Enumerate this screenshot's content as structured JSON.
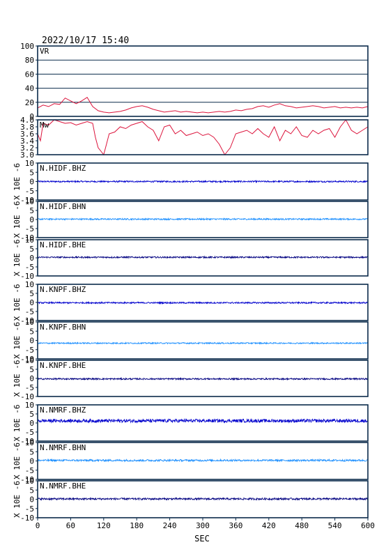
{
  "header": {
    "timestamp": "2022/10/17  15:40"
  },
  "chart_data": {
    "type": "line",
    "xlabel": "SEC",
    "xlim": [
      0,
      600
    ],
    "xticks": [
      0,
      60,
      120,
      180,
      240,
      300,
      360,
      420,
      480,
      540,
      600
    ],
    "colors": {
      "red": "#dc143c",
      "blue": "#0000cd",
      "lightblue": "#1e90ff",
      "navy": "#000080",
      "axis": "#0a2a4a"
    },
    "panels": [
      {
        "key": "vr",
        "label": "VR",
        "ylabel": "",
        "ylim": [
          0,
          100
        ],
        "yticks": [
          0,
          20,
          40,
          60,
          80,
          100
        ],
        "color": "red",
        "grid": true,
        "x": [
          0,
          10,
          20,
          30,
          40,
          50,
          60,
          70,
          80,
          90,
          100,
          110,
          120,
          130,
          140,
          150,
          160,
          170,
          180,
          190,
          200,
          210,
          220,
          230,
          240,
          250,
          260,
          270,
          280,
          290,
          300,
          310,
          320,
          330,
          340,
          350,
          360,
          370,
          380,
          390,
          400,
          410,
          420,
          430,
          440,
          450,
          460,
          470,
          480,
          490,
          500,
          510,
          520,
          530,
          540,
          550,
          560,
          570,
          580,
          590,
          600
        ],
        "values": [
          12,
          16,
          14,
          18,
          17,
          26,
          22,
          18,
          22,
          27,
          14,
          8,
          6,
          5,
          6,
          7,
          9,
          12,
          14,
          15,
          13,
          10,
          8,
          6,
          7,
          8,
          6,
          7,
          6,
          5,
          6,
          5,
          6,
          7,
          6,
          7,
          9,
          8,
          10,
          11,
          14,
          15,
          13,
          16,
          18,
          15,
          14,
          12,
          13,
          14,
          15,
          14,
          12,
          13,
          14,
          12,
          13,
          12,
          13,
          12,
          14
        ]
      },
      {
        "key": "mw",
        "label": "Mw",
        "ylabel": "",
        "ylim": [
          3.0,
          4.0
        ],
        "yticks": [
          3.0,
          3.2,
          3.4,
          3.6,
          3.8,
          4.0
        ],
        "ytick_labels": [
          "3.0",
          "3.2",
          "3.4",
          "3.6",
          "3.8",
          "4.0"
        ],
        "color": "red",
        "grid": false,
        "x": [
          0,
          5,
          10,
          20,
          30,
          40,
          50,
          60,
          70,
          80,
          90,
          100,
          105,
          110,
          115,
          120,
          125,
          130,
          140,
          150,
          160,
          170,
          180,
          190,
          200,
          210,
          220,
          230,
          240,
          250,
          260,
          270,
          280,
          290,
          300,
          310,
          320,
          330,
          340,
          350,
          360,
          370,
          380,
          390,
          400,
          410,
          420,
          430,
          440,
          450,
          460,
          470,
          480,
          490,
          500,
          510,
          520,
          530,
          540,
          550,
          560,
          570,
          580,
          590,
          600
        ],
        "values": [
          3.6,
          3.4,
          3.9,
          3.85,
          4.0,
          3.95,
          3.9,
          3.92,
          3.85,
          3.9,
          3.95,
          3.9,
          3.5,
          3.2,
          3.1,
          3.0,
          3.3,
          3.6,
          3.65,
          3.8,
          3.75,
          3.85,
          3.9,
          3.95,
          3.8,
          3.7,
          3.4,
          3.8,
          3.85,
          3.6,
          3.7,
          3.55,
          3.6,
          3.65,
          3.55,
          3.6,
          3.5,
          3.3,
          3.0,
          3.2,
          3.6,
          3.65,
          3.7,
          3.6,
          3.75,
          3.6,
          3.5,
          3.8,
          3.4,
          3.7,
          3.6,
          3.8,
          3.55,
          3.5,
          3.7,
          3.6,
          3.7,
          3.75,
          3.5,
          3.8,
          4.0,
          3.7,
          3.6,
          3.7,
          3.8
        ]
      },
      {
        "key": "hidf_bhz",
        "label": "N.HIDF.BHZ",
        "ylabel": "X 10E -6",
        "ylim": [
          -10,
          10
        ],
        "yticks": [
          -10,
          -5,
          0,
          5,
          10
        ],
        "color": "blue",
        "grid": false,
        "offset": 0,
        "noise": 0.4
      },
      {
        "key": "hidf_bhn",
        "label": "N.HIDF.BHN",
        "ylabel": "X 10E -6",
        "ylim": [
          -10,
          10
        ],
        "yticks": [
          -10,
          -5,
          0,
          5,
          10
        ],
        "color": "lightblue",
        "grid": false,
        "offset": 0.2,
        "noise": 0.4
      },
      {
        "key": "hidf_bhe",
        "label": "N.HIDF.BHE",
        "ylabel": "X 10E -6",
        "ylim": [
          -10,
          10
        ],
        "yticks": [
          -10,
          -5,
          0,
          5,
          10
        ],
        "color": "navy",
        "grid": false,
        "offset": 0.3,
        "noise": 0.4
      },
      {
        "key": "knpf_bhz",
        "label": "N.KNPF.BHZ",
        "ylabel": "X 10E -6",
        "ylim": [
          -10,
          10
        ],
        "yticks": [
          -10,
          -5,
          0,
          5,
          10
        ],
        "color": "blue",
        "grid": false,
        "offset": -0.2,
        "noise": 0.4
      },
      {
        "key": "knpf_bhn",
        "label": "N.KNPF.BHN",
        "ylabel": "X 10E -6",
        "ylim": [
          -10,
          10
        ],
        "yticks": [
          -10,
          -5,
          0,
          5,
          10
        ],
        "color": "lightblue",
        "grid": false,
        "offset": -1.5,
        "noise": 0.35
      },
      {
        "key": "knpf_bhe",
        "label": "N.KNPF.BHE",
        "ylabel": "X 10E -6",
        "ylim": [
          -10,
          10
        ],
        "yticks": [
          -10,
          -5,
          0,
          5,
          10
        ],
        "color": "navy",
        "grid": false,
        "offset": -0.3,
        "noise": 0.4
      },
      {
        "key": "nmrf_bhz",
        "label": "N.NMRF.BHZ",
        "ylabel": "X 10E -6",
        "ylim": [
          -10,
          10
        ],
        "yticks": [
          -10,
          -5,
          0,
          5,
          10
        ],
        "color": "blue",
        "grid": false,
        "offset": 1.2,
        "noise": 0.9
      },
      {
        "key": "nmrf_bhn",
        "label": "N.NMRF.BHN",
        "ylabel": "X 10E -6",
        "ylim": [
          -10,
          10
        ],
        "yticks": [
          -10,
          -5,
          0,
          5,
          10
        ],
        "color": "lightblue",
        "grid": false,
        "offset": 0.3,
        "noise": 0.5
      },
      {
        "key": "nmrf_bhe",
        "label": "N.NMRF.BHE",
        "ylabel": "X 10E -6",
        "ylim": [
          -10,
          10
        ],
        "yticks": [
          -10,
          -5,
          0,
          5,
          10
        ],
        "color": "navy",
        "grid": false,
        "offset": 0.2,
        "noise": 0.5
      }
    ]
  }
}
